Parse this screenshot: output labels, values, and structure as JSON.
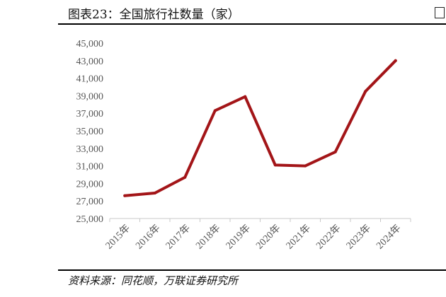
{
  "header": {
    "title": "图表23：全国旅行社数量（家）"
  },
  "footer": {
    "source": "资料来源：同花顺，万联证券研究所"
  },
  "colors": {
    "line": "#a31518",
    "axis": "#c8c8c8"
  },
  "chart_data": {
    "type": "line",
    "title": "全国旅行社数量（家）",
    "xlabel": "",
    "ylabel": "",
    "ylim": [
      25000,
      45000
    ],
    "yticks": [
      "25,000",
      "27,000",
      "29,000",
      "31,000",
      "33,000",
      "35,000",
      "37,000",
      "39,000",
      "41,000",
      "43,000",
      "45,000"
    ],
    "categories": [
      "2015年",
      "2016年",
      "2017年",
      "2018年",
      "2019年",
      "2020年",
      "2021年",
      "2022年",
      "2023年",
      "2024年"
    ],
    "series": [
      {
        "values": [
          27600,
          27900,
          29700,
          37300,
          38900,
          31100,
          31000,
          32600,
          39500,
          43000
        ]
      }
    ],
    "grid": false,
    "legend": "none"
  }
}
